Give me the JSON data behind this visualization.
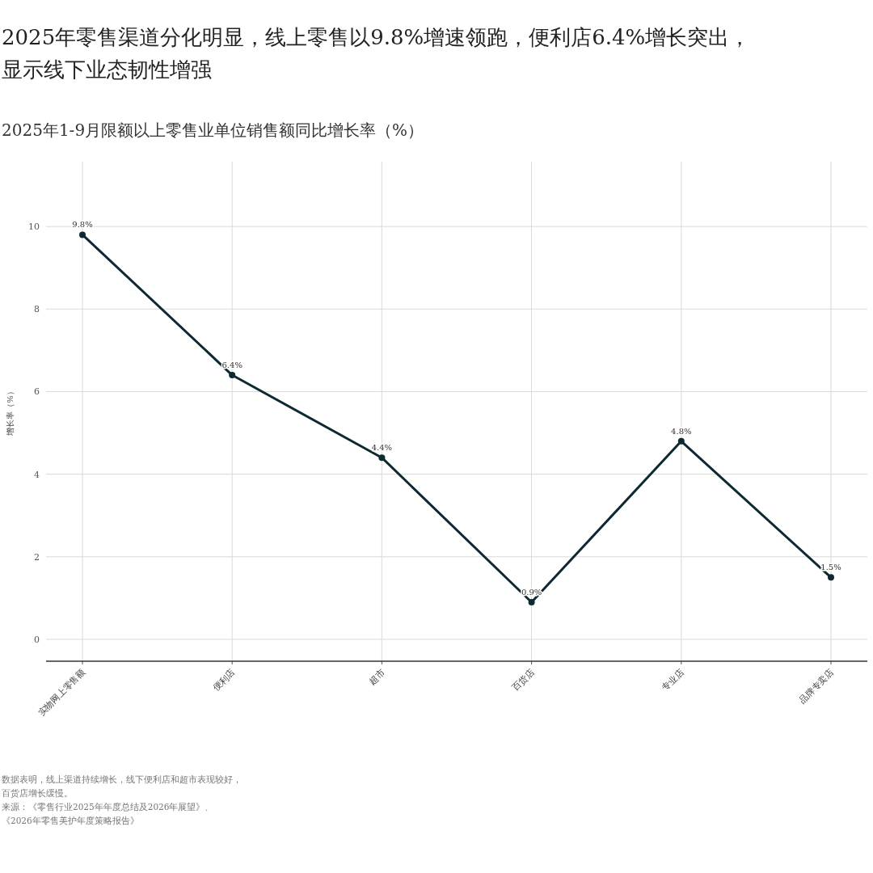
{
  "chart_data": {
    "type": "line",
    "title": "2025年零售渠道分化明显，线上零售以9.8%增速领跑，便利店6.4%增长突出，显示线下业态韧性增强",
    "subtitle": "2025年1-9月限额以上零售业单位销售额同比增长率（%）",
    "ylabel": "增长率（%）",
    "categories": [
      "实物网上零售额",
      "便利店",
      "超市",
      "百货店",
      "专业店",
      "品牌专卖店"
    ],
    "series": [
      {
        "color": "#0d2a33",
        "values": [
          9.8,
          6.4,
          4.4,
          0.9,
          4.8,
          1.5
        ],
        "value_labels": [
          "9.8%",
          "6.4%",
          "4.4%",
          "0.9%",
          "4.8%",
          "1.5%"
        ]
      }
    ],
    "ylim": [
      -0.53,
      11.57
    ],
    "yticks": [
      0,
      2,
      4,
      6,
      8,
      10
    ],
    "grid": true,
    "marker": "circle",
    "line_style": "solid",
    "annotations": [
      "数据表明，线上渠道持续增长，线下便利店和超市表现较好，百货店增长缓慢。",
      "来源：《零售行业2025年年度总结及2026年展望》、《2026年零售美护年度策略报告》"
    ]
  }
}
